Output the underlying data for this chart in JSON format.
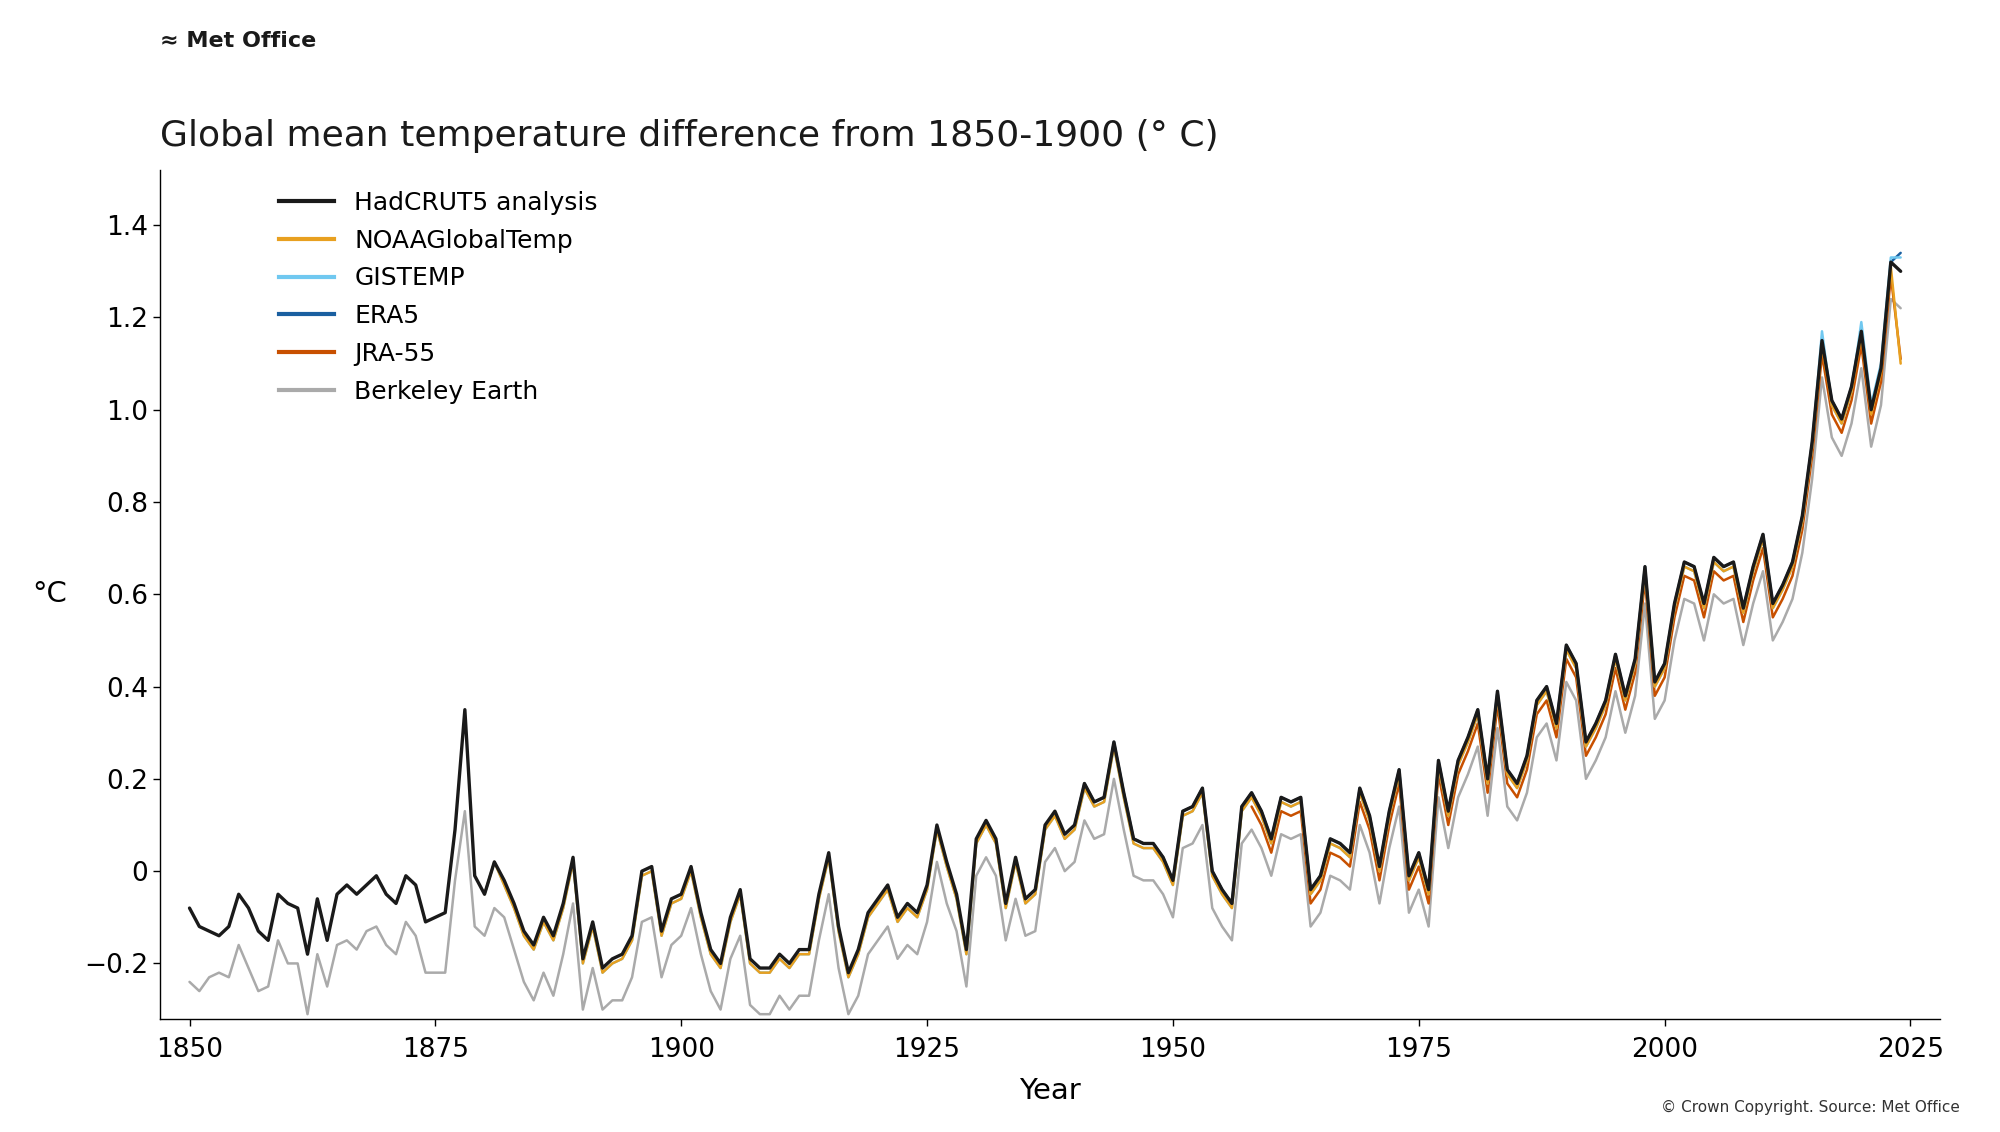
{
  "title": "Global mean temperature difference from 1850-1900 (° C)",
  "ylabel": "°C",
  "xlabel": "Year",
  "copyright": "© Crown Copyright. Source: Met Office",
  "xlim": [
    1847,
    2028
  ],
  "ylim": [
    -0.32,
    1.52
  ],
  "yticks": [
    -0.2,
    0.0,
    0.2,
    0.4,
    0.6,
    0.8,
    1.0,
    1.2,
    1.4
  ],
  "xticks": [
    1850,
    1875,
    1900,
    1925,
    1950,
    1975,
    2000,
    2025
  ],
  "series_colors": {
    "HadCRUT5 analysis": "#1a1a1a",
    "NOAAGlobalTemp": "#E8A020",
    "GISTEMP": "#70C8F0",
    "ERA5": "#1a5fa0",
    "JRA-55": "#C85000",
    "Berkeley Earth": "#aaaaaa"
  },
  "background_color": "#ffffff"
}
